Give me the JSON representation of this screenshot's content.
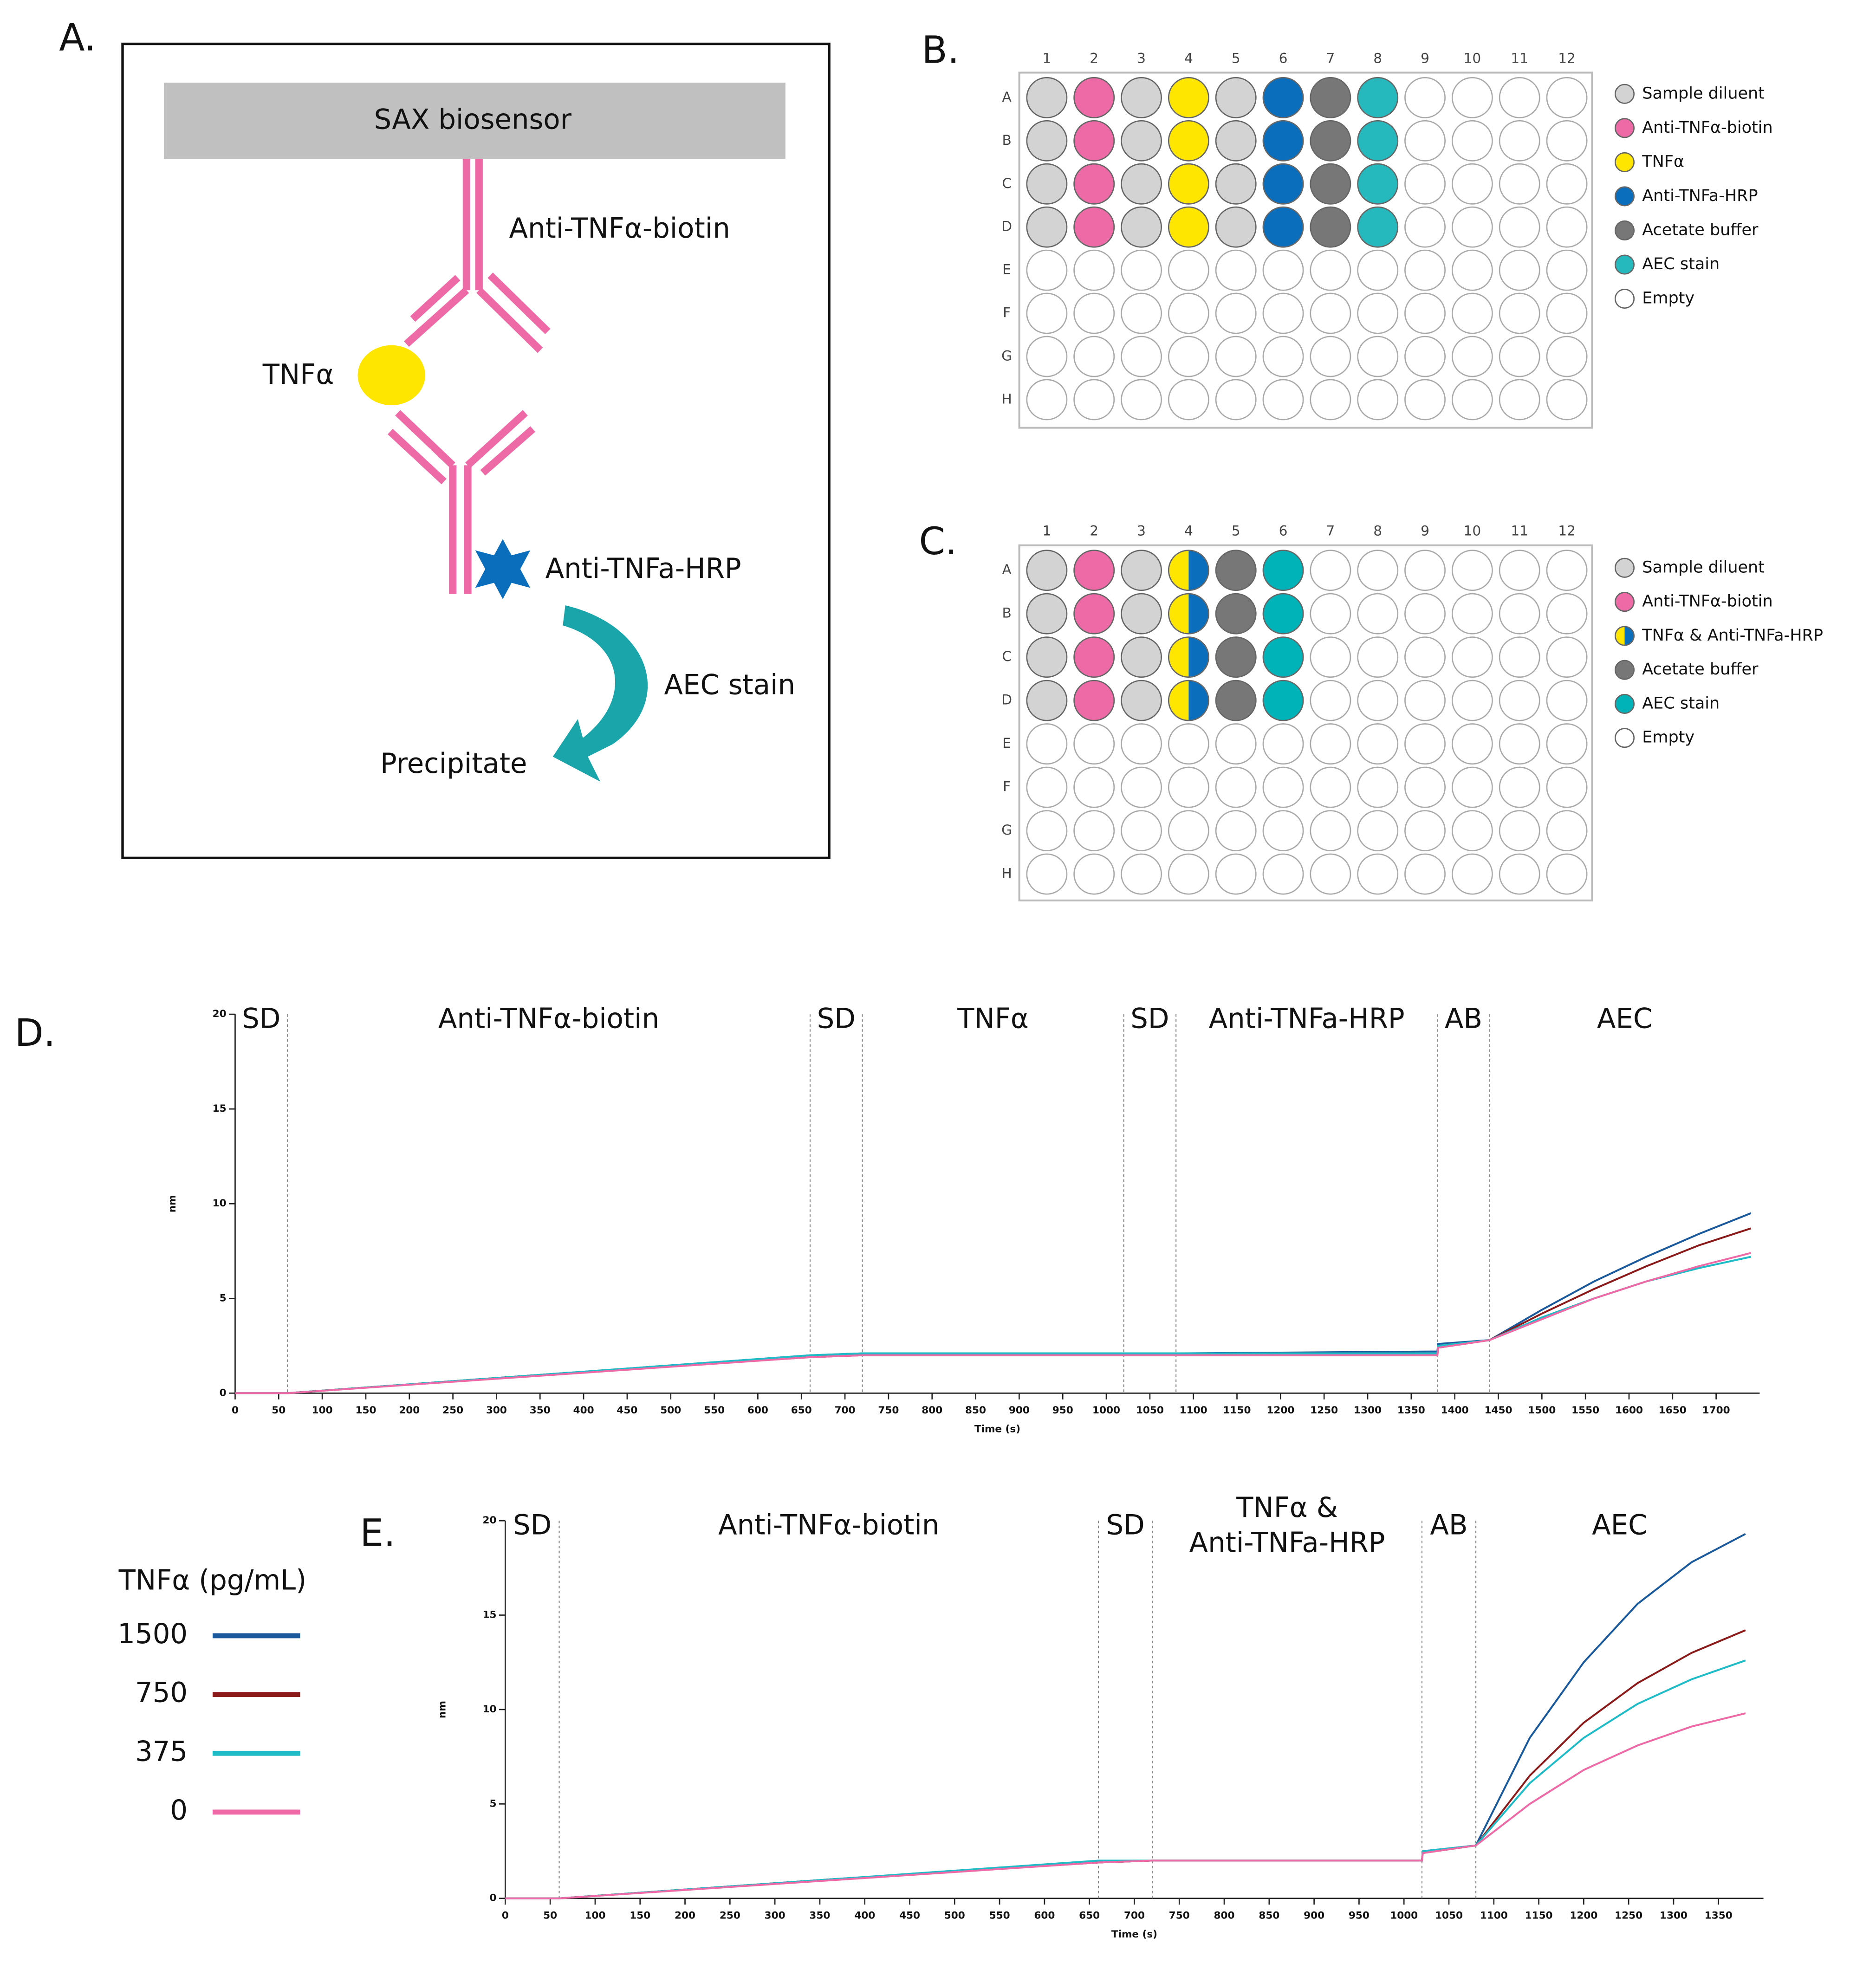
{
  "panel_a": {
    "label": "A.",
    "biosensor": "SAX biosensor",
    "capture": "Anti-TNFα-biotin",
    "antigen": "TNFα",
    "detection": "Anti-TNFa-HRP",
    "stain": "AEC stain",
    "product": "Precipitate"
  },
  "plate_b": {
    "label": "B.",
    "columns": [
      "1",
      "2",
      "3",
      "4",
      "5",
      "6",
      "7",
      "8",
      "9",
      "10",
      "11",
      "12"
    ],
    "rows": [
      "A",
      "B",
      "C",
      "D",
      "E",
      "F",
      "G",
      "H"
    ],
    "legend": [
      {
        "label": "Sample diluent",
        "colors": [
          "#d3d3d3"
        ]
      },
      {
        "label": "Anti-TNFα-biotin",
        "colors": [
          "#ee6aa7"
        ]
      },
      {
        "label": "TNFα",
        "colors": [
          "#ffe600"
        ]
      },
      {
        "label": "Anti-TNFa-HRP",
        "colors": [
          "#0a6ebd"
        ]
      },
      {
        "label": "Acetate buffer",
        "colors": [
          "#777777"
        ]
      },
      {
        "label": "AEC stain",
        "colors": [
          "#25b9bd"
        ]
      },
      {
        "label": "Empty",
        "colors": [
          "#ffffff"
        ]
      }
    ],
    "wells": [
      0,
      1,
      0,
      2,
      0,
      3,
      4,
      5,
      6,
      6,
      6,
      6
    ],
    "filled_rows": 4
  },
  "plate_c": {
    "label": "C.",
    "columns": [
      "1",
      "2",
      "3",
      "4",
      "5",
      "6",
      "7",
      "8",
      "9",
      "10",
      "11",
      "12"
    ],
    "rows": [
      "A",
      "B",
      "C",
      "D",
      "E",
      "F",
      "G",
      "H"
    ],
    "legend": [
      {
        "label": "Sample diluent",
        "colors": [
          "#d3d3d3"
        ]
      },
      {
        "label": "Anti-TNFα-biotin",
        "colors": [
          "#ee6aa7"
        ]
      },
      {
        "label": "TNFα & Anti-TNFa-HRP",
        "colors": [
          "#ffe600",
          "#0a6ebd"
        ]
      },
      {
        "label": "Acetate buffer",
        "colors": [
          "#777777"
        ]
      },
      {
        "label": "AEC stain",
        "colors": [
          "#00b3b8"
        ]
      },
      {
        "label": "Empty",
        "colors": [
          "#ffffff"
        ]
      }
    ],
    "wells": [
      0,
      1,
      0,
      2,
      3,
      4,
      5,
      5,
      5,
      5,
      5,
      5
    ],
    "filled_rows": 4
  },
  "chart_data": [
    {
      "type": "line",
      "label": "D.",
      "x_label": "Time (s)",
      "y_label": "nm",
      "xlim": [
        0,
        1750
      ],
      "ylim": [
        0,
        20
      ],
      "xticks": [
        0,
        50,
        100,
        150,
        200,
        250,
        300,
        350,
        400,
        450,
        500,
        550,
        600,
        650,
        700,
        750,
        800,
        850,
        900,
        950,
        1000,
        1050,
        1100,
        1150,
        1200,
        1250,
        1300,
        1350,
        1400,
        1450,
        1500,
        1550,
        1600,
        1650,
        1700
      ],
      "yticks": [
        0,
        5,
        10,
        15,
        20
      ],
      "vlines": [
        60,
        660,
        720,
        1020,
        1080,
        1380,
        1440
      ],
      "phases": [
        "SD",
        "Anti-TNFα-biotin",
        "SD",
        "TNFα",
        "SD",
        "Anti-TNFa-HRP",
        "AB",
        "AEC"
      ],
      "x": [
        0,
        60,
        360,
        660,
        720,
        1020,
        1080,
        1380,
        1381,
        1440,
        1500,
        1560,
        1620,
        1680,
        1740
      ],
      "series": [
        {
          "color": "#1a5a9c",
          "values": [
            0,
            0,
            1.0,
            2.0,
            2.1,
            2.1,
            2.1,
            2.2,
            2.6,
            2.8,
            4.4,
            5.9,
            7.2,
            8.4,
            9.5
          ]
        },
        {
          "color": "#8b1a1a",
          "values": [
            0,
            0,
            1.0,
            1.9,
            2.0,
            2.0,
            2.0,
            2.0,
            2.4,
            2.8,
            4.2,
            5.5,
            6.7,
            7.8,
            8.7
          ]
        },
        {
          "color": "#1fbcc8",
          "values": [
            0,
            0,
            1.0,
            2.0,
            2.1,
            2.1,
            2.1,
            2.1,
            2.5,
            2.8,
            4.0,
            5.0,
            5.9,
            6.6,
            7.2
          ]
        },
        {
          "color": "#ee6aa7",
          "values": [
            0,
            0,
            0.95,
            1.9,
            2.0,
            2.0,
            2.0,
            2.0,
            2.4,
            2.8,
            3.9,
            5.0,
            5.9,
            6.7,
            7.4
          ]
        }
      ]
    },
    {
      "type": "line",
      "label": "E.",
      "x_label": "Time (s)",
      "y_label": "nm",
      "legend_title": "TNFα (pg/mL)",
      "xlim": [
        0,
        1400
      ],
      "ylim": [
        0,
        20
      ],
      "xticks": [
        0,
        50,
        100,
        150,
        200,
        250,
        300,
        350,
        400,
        450,
        500,
        550,
        600,
        650,
        700,
        750,
        800,
        850,
        900,
        950,
        1000,
        1050,
        1100,
        1150,
        1200,
        1250,
        1300,
        1350
      ],
      "yticks": [
        0,
        5,
        10,
        15,
        20
      ],
      "vlines": [
        60,
        660,
        720,
        1020,
        1080
      ],
      "phases": [
        "SD",
        "Anti-TNFα-biotin",
        "SD",
        [
          "TNFα &",
          "Anti-TNFa-HRP"
        ],
        "AB",
        "AEC"
      ],
      "x": [
        0,
        60,
        360,
        660,
        720,
        1020,
        1021,
        1080,
        1140,
        1200,
        1260,
        1320,
        1380
      ],
      "series": [
        {
          "name": "1500",
          "color": "#1a5a9c",
          "values": [
            0,
            0,
            1.0,
            1.9,
            2.0,
            2.0,
            2.5,
            2.8,
            8.5,
            12.5,
            15.6,
            17.8,
            19.3
          ]
        },
        {
          "name": "750",
          "color": "#8b1a1a",
          "values": [
            0,
            0,
            1.0,
            1.9,
            2.0,
            2.0,
            2.4,
            2.8,
            6.5,
            9.3,
            11.4,
            13.0,
            14.2
          ]
        },
        {
          "name": "375",
          "color": "#1fbcc8",
          "values": [
            0,
            0,
            1.0,
            2.0,
            2.0,
            2.0,
            2.5,
            2.8,
            6.1,
            8.5,
            10.3,
            11.6,
            12.6
          ]
        },
        {
          "name": "0",
          "color": "#ee6aa7",
          "values": [
            0,
            0,
            0.95,
            1.9,
            2.0,
            2.0,
            2.4,
            2.8,
            5.0,
            6.8,
            8.1,
            9.1,
            9.8
          ]
        }
      ]
    }
  ]
}
